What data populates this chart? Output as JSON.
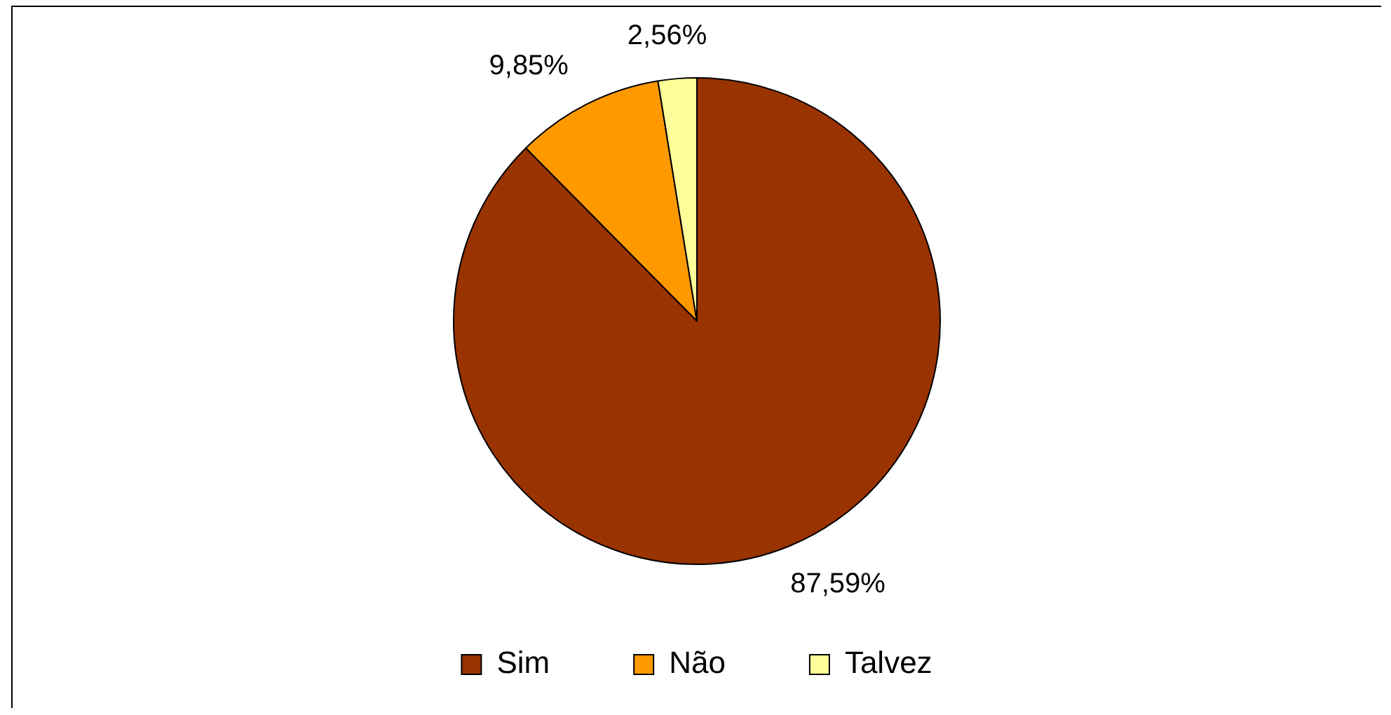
{
  "chart_data": {
    "type": "pie",
    "categories": [
      "Sim",
      "Não",
      "Talvez"
    ],
    "values": [
      87.59,
      9.85,
      2.56
    ],
    "colors": [
      "#993300",
      "#ff9900",
      "#ffff99"
    ],
    "value_labels": [
      "87,59%",
      "9,85%",
      "2,56%"
    ],
    "legend": "bottom"
  }
}
